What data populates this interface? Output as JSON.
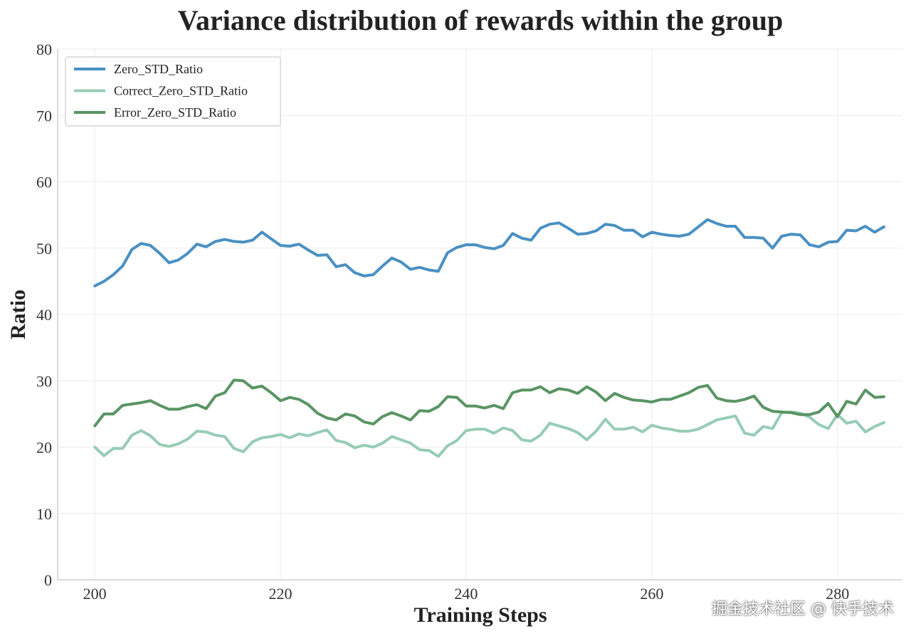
{
  "chart_data": {
    "type": "line",
    "title": "Variance distribution of rewards within the group",
    "xlabel": "Training Steps",
    "ylabel": "Ratio",
    "xlim": [
      196,
      287
    ],
    "ylim": [
      0,
      80
    ],
    "xticks": [
      200,
      220,
      240,
      260,
      280
    ],
    "yticks": [
      0,
      10,
      20,
      30,
      40,
      50,
      60,
      70,
      80
    ],
    "grid": true,
    "legend_position": "top-left",
    "x_start": 200,
    "x_step": 1,
    "series": [
      {
        "name": "Zero_STD_Ratio",
        "color": "#4a90c2",
        "values": [
          44.3,
          45.0,
          46.0,
          47.3,
          49.8,
          50.7,
          50.4,
          49.2,
          47.8,
          48.2,
          49.2,
          50.6,
          50.2,
          51.0,
          51.3,
          51.0,
          50.9,
          51.2,
          52.4,
          51.4,
          50.4,
          50.3,
          50.6,
          49.7,
          48.9,
          49.0,
          47.2,
          47.5,
          46.3,
          45.8,
          46.0,
          47.3,
          48.5,
          47.9,
          46.8,
          47.1,
          46.7,
          46.5,
          49.3,
          50.1,
          50.5,
          50.5,
          50.1,
          49.9,
          50.4,
          52.2,
          51.5,
          51.2,
          53.0,
          53.6,
          53.8,
          53.0,
          52.1,
          52.2,
          52.6,
          53.6,
          53.4,
          52.7,
          52.7,
          51.7,
          52.4,
          52.1,
          51.9,
          51.8,
          52.1,
          53.2,
          54.3,
          53.7,
          53.3,
          53.3,
          51.6,
          51.6,
          51.5,
          50.0,
          51.8,
          52.1,
          52.0,
          50.5,
          50.2,
          50.9,
          51.0,
          52.7,
          52.6,
          53.3,
          52.4,
          53.2
        ]
      },
      {
        "name": "Correct_Zero_STD_Ratio",
        "color": "#97ccb6",
        "values": [
          20.0,
          18.7,
          19.8,
          19.8,
          21.8,
          22.5,
          21.7,
          20.4,
          20.1,
          20.5,
          21.2,
          22.4,
          22.3,
          21.8,
          21.6,
          19.8,
          19.3,
          20.8,
          21.4,
          21.6,
          21.9,
          21.4,
          22.0,
          21.7,
          22.2,
          22.6,
          21.0,
          20.7,
          19.9,
          20.3,
          20.0,
          20.6,
          21.6,
          21.1,
          20.6,
          19.6,
          19.5,
          18.6,
          20.2,
          21.0,
          22.5,
          22.7,
          22.7,
          22.1,
          22.9,
          22.5,
          21.1,
          20.9,
          21.8,
          23.6,
          23.2,
          22.8,
          22.2,
          21.1,
          22.4,
          24.2,
          22.7,
          22.7,
          23.0,
          22.3,
          23.3,
          22.9,
          22.7,
          22.4,
          22.4,
          22.7,
          23.4,
          24.1,
          24.4,
          24.7,
          22.1,
          21.8,
          23.1,
          22.8,
          25.2,
          25.3,
          25.1,
          24.5,
          23.4,
          22.8,
          24.9,
          23.6,
          23.9,
          22.3,
          23.1,
          23.7
        ]
      },
      {
        "name": "Error_Zero_STD_Ratio",
        "color": "#5a9464",
        "values": [
          23.2,
          25.0,
          25.0,
          26.3,
          26.5,
          26.7,
          27.0,
          26.3,
          25.7,
          25.7,
          26.1,
          26.4,
          25.8,
          27.7,
          28.2,
          30.1,
          30.0,
          28.9,
          29.2,
          28.2,
          27.0,
          27.5,
          27.2,
          26.4,
          25.1,
          24.4,
          24.1,
          25.0,
          24.7,
          23.8,
          23.5,
          24.6,
          25.2,
          24.7,
          24.1,
          25.5,
          25.4,
          26.1,
          27.6,
          27.5,
          26.2,
          26.2,
          25.9,
          26.3,
          25.8,
          28.2,
          28.6,
          28.6,
          29.1,
          28.2,
          28.8,
          28.6,
          28.1,
          29.1,
          28.3,
          27.0,
          28.1,
          27.5,
          27.1,
          27.0,
          26.8,
          27.2,
          27.2,
          27.7,
          28.2,
          29.0,
          29.3,
          27.4,
          27.0,
          26.9,
          27.2,
          27.7,
          26.0,
          25.4,
          25.3,
          25.2,
          24.9,
          24.9,
          25.3,
          26.6,
          24.6,
          26.9,
          26.5,
          28.6,
          27.5,
          27.6
        ]
      }
    ]
  },
  "watermark": "掘金技术社区 @ 快手技术"
}
